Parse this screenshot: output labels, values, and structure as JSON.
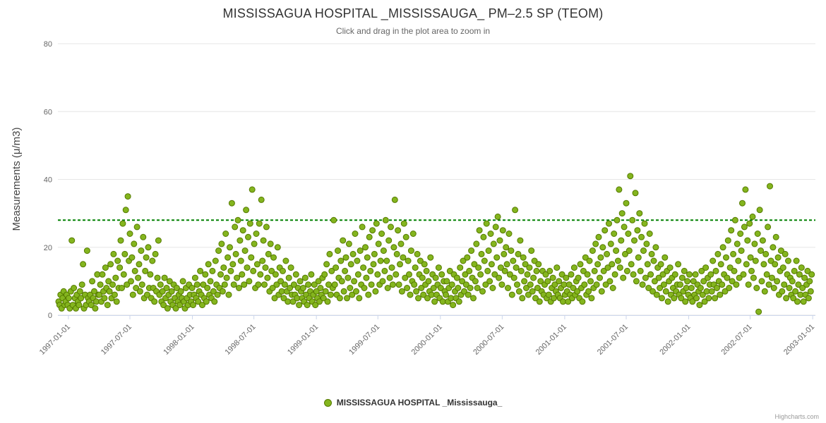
{
  "page": {
    "credits_label": "Highcharts.com"
  },
  "colors": {
    "grid_line": "#e6e6e6",
    "axis_line": "#ccd6eb",
    "title_text": "#333333",
    "subtitle_text": "#666666",
    "tick_label_text": "#666666",
    "axis_title_text": "#444444",
    "legend_text": "#333333",
    "credits_text": "#999999"
  },
  "chart_data": {
    "type": "scatter",
    "title": "MISSISSAGUA HOSPITAL _MISSISSAUGA_ PM–2.5 SP (TEOM)",
    "subtitle": "Click and drag in the plot area to zoom in",
    "xlabel": "",
    "ylabel": "Measurements (μ/m3)",
    "ylim": [
      0,
      80
    ],
    "y_ticks": [
      0,
      20,
      40,
      60,
      80
    ],
    "grid": "horizontal",
    "legend_position": "bottom-center",
    "x_domain_days": [
      0,
      2230
    ],
    "x_ticks": [
      {
        "day": 31,
        "label": "1997-01-01"
      },
      {
        "day": 212,
        "label": "1997-07-01"
      },
      {
        "day": 396,
        "label": "1998-01-01"
      },
      {
        "day": 577,
        "label": "1998-07-01"
      },
      {
        "day": 761,
        "label": "1999-01-01"
      },
      {
        "day": 942,
        "label": "1999-07-01"
      },
      {
        "day": 1126,
        "label": "2000-01-01"
      },
      {
        "day": 1308,
        "label": "2000-07-01"
      },
      {
        "day": 1492,
        "label": "2001-01-01"
      },
      {
        "day": 1673,
        "label": "2001-07-01"
      },
      {
        "day": 1857,
        "label": "2002-01-01"
      },
      {
        "day": 2038,
        "label": "2002-07-01"
      },
      {
        "day": 2222,
        "label": "2003-01-01"
      }
    ],
    "plot_line": {
      "value": 28,
      "color": "#008000",
      "dash_style": "Dash"
    },
    "series": [
      {
        "name": "MISSISSAGUA HOSPITAL _Mississauga_",
        "marker_fill": "#84b51e",
        "marker_stroke": "#557a00",
        "marker_radius": 4,
        "x_day_start": 2,
        "x_day_step": 3,
        "values": [
          4,
          3,
          6,
          2,
          5,
          7,
          3,
          4,
          6,
          3,
          5,
          2,
          7,
          22,
          3,
          8,
          5,
          2,
          6,
          4,
          3,
          7,
          5,
          9,
          15,
          2,
          6,
          3,
          19,
          5,
          4,
          6,
          3,
          10,
          5,
          7,
          2,
          4,
          12,
          6,
          6,
          9,
          4,
          12,
          7,
          5,
          14,
          8,
          3,
          10,
          7,
          15,
          5,
          9,
          18,
          6,
          11,
          4,
          16,
          8,
          14,
          22,
          8,
          27,
          12,
          18,
          31,
          9,
          35,
          16,
          24,
          10,
          17,
          6,
          21,
          13,
          8,
          26,
          11,
          15,
          7,
          19,
          9,
          23,
          5,
          13,
          17,
          6,
          20,
          8,
          12,
          5,
          16,
          8,
          4,
          18,
          7,
          11,
          22,
          6,
          9,
          4,
          7,
          3,
          11,
          5,
          8,
          2,
          6,
          10,
          4,
          7,
          3,
          9,
          5,
          2,
          8,
          4,
          6,
          3,
          7,
          5,
          10,
          4,
          2,
          8,
          5,
          3,
          9,
          6,
          4,
          8,
          3,
          6,
          11,
          5,
          9,
          4,
          7,
          13,
          6,
          3,
          9,
          5,
          12,
          4,
          8,
          15,
          6,
          10,
          5,
          13,
          7,
          4,
          16,
          9,
          6,
          19,
          8,
          12,
          21,
          7,
          14,
          9,
          24,
          11,
          17,
          6,
          20,
          13,
          33,
          15,
          9,
          26,
          18,
          11,
          28,
          8,
          22,
          16,
          12,
          25,
          9,
          19,
          31,
          14,
          23,
          10,
          27,
          17,
          37,
          13,
          21,
          8,
          24,
          15,
          9,
          27,
          12,
          34,
          16,
          22,
          9,
          14,
          26,
          11,
          18,
          7,
          21,
          13,
          8,
          17,
          5,
          12,
          9,
          20,
          6,
          14,
          10,
          7,
          13,
          5,
          9,
          16,
          7,
          4,
          11,
          8,
          14,
          6,
          4,
          9,
          6,
          12,
          5,
          8,
          3,
          10,
          7,
          5,
          8,
          4,
          11,
          6,
          3,
          9,
          5,
          7,
          12,
          4,
          6,
          9,
          3,
          7,
          5,
          10,
          4,
          8,
          6,
          11,
          5,
          12,
          7,
          15,
          4,
          9,
          18,
          6,
          13,
          8,
          28,
          9,
          14,
          6,
          19,
          11,
          5,
          16,
          10,
          22,
          7,
          13,
          17,
          5,
          11,
          21,
          8,
          15,
          6,
          18,
          10,
          24,
          7,
          16,
          12,
          5,
          19,
          9,
          26,
          14,
          8,
          20,
          11,
          17,
          6,
          23,
          13,
          9,
          25,
          15,
          18,
          7,
          27,
          12,
          21,
          9,
          16,
          24,
          10,
          19,
          13,
          28,
          16,
          8,
          22,
          11,
          26,
          14,
          9,
          20,
          34,
          12,
          18,
          25,
          9,
          15,
          21,
          7,
          17,
          27,
          11,
          23,
          8,
          16,
          12,
          6,
          19,
          10,
          24,
          9,
          14,
          7,
          18,
          5,
          12,
          16,
          8,
          11,
          6,
          15,
          9,
          13,
          5,
          10,
          7,
          17,
          6,
          12,
          8,
          4,
          11,
          6,
          9,
          14,
          5,
          8,
          12,
          4,
          10,
          7,
          6,
          10,
          4,
          8,
          13,
          5,
          9,
          3,
          12,
          7,
          5,
          11,
          8,
          4,
          14,
          6,
          10,
          16,
          7,
          12,
          9,
          17,
          6,
          13,
          8,
          19,
          11,
          5,
          15,
          10,
          21,
          8,
          14,
          25,
          12,
          18,
          7,
          23,
          16,
          9,
          27,
          13,
          19,
          10,
          24,
          15,
          8,
          21,
          12,
          26,
          17,
          29,
          11,
          22,
          14,
          9,
          25,
          18,
          13,
          20,
          15,
          8,
          24,
          12,
          19,
          6,
          16,
          11,
          31,
          14,
          9,
          18,
          7,
          22,
          13,
          5,
          17,
          10,
          15,
          8,
          12,
          6,
          14,
          9,
          19,
          7,
          11,
          16,
          5,
          13,
          8,
          15,
          4,
          10,
          7,
          13,
          6,
          9,
          12,
          5,
          10,
          6,
          13,
          4,
          8,
          11,
          5,
          9,
          7,
          14,
          6,
          10,
          5,
          8,
          12,
          4,
          9,
          6,
          11,
          7,
          4,
          9,
          6,
          12,
          5,
          8,
          14,
          6,
          10,
          7,
          11,
          5,
          15,
          8,
          4,
          13,
          9,
          17,
          6,
          12,
          7,
          16,
          10,
          5,
          19,
          8,
          13,
          21,
          9,
          15,
          23,
          11,
          17,
          7,
          20,
          13,
          25,
          9,
          18,
          14,
          27,
          10,
          21,
          15,
          8,
          24,
          12,
          19,
          28,
          16,
          37,
          14,
          22,
          30,
          11,
          26,
          18,
          33,
          13,
          24,
          19,
          41,
          15,
          28,
          12,
          22,
          36,
          10,
          25,
          17,
          30,
          13,
          23,
          9,
          19,
          27,
          11,
          21,
          15,
          8,
          24,
          12,
          18,
          7,
          16,
          10,
          20,
          6,
          14,
          11,
          8,
          15,
          5,
          12,
          9,
          17,
          7,
          13,
          4,
          10,
          14,
          6,
          11,
          8,
          5,
          12,
          7,
          9,
          15,
          6,
          9,
          5,
          11,
          7,
          13,
          4,
          8,
          10,
          6,
          12,
          5,
          8,
          4,
          10,
          6,
          12,
          5,
          9,
          7,
          3,
          8,
          13,
          6,
          10,
          4,
          14,
          7,
          11,
          5,
          9,
          12,
          7,
          16,
          9,
          5,
          13,
          8,
          18,
          10,
          6,
          15,
          9,
          20,
          12,
          7,
          17,
          11,
          22,
          8,
          14,
          25,
          10,
          18,
          13,
          28,
          9,
          21,
          16,
          11,
          24,
          19,
          33,
          12,
          26,
          37,
          15,
          22,
          9,
          27,
          17,
          13,
          29,
          11,
          21,
          16,
          8,
          24,
          1,
          31,
          19,
          10,
          22,
          15,
          7,
          18,
          12,
          26,
          9,
          38,
          16,
          11,
          20,
          8,
          15,
          23,
          10,
          17,
          6,
          13,
          19,
          7,
          14,
          9,
          18,
          5,
          12,
          16,
          8,
          11,
          6,
          10,
          5,
          13,
          7,
          16,
          4,
          9,
          12,
          6,
          14,
          8,
          4,
          11,
          6,
          9,
          13,
          5,
          10,
          7,
          12
        ]
      }
    ]
  }
}
